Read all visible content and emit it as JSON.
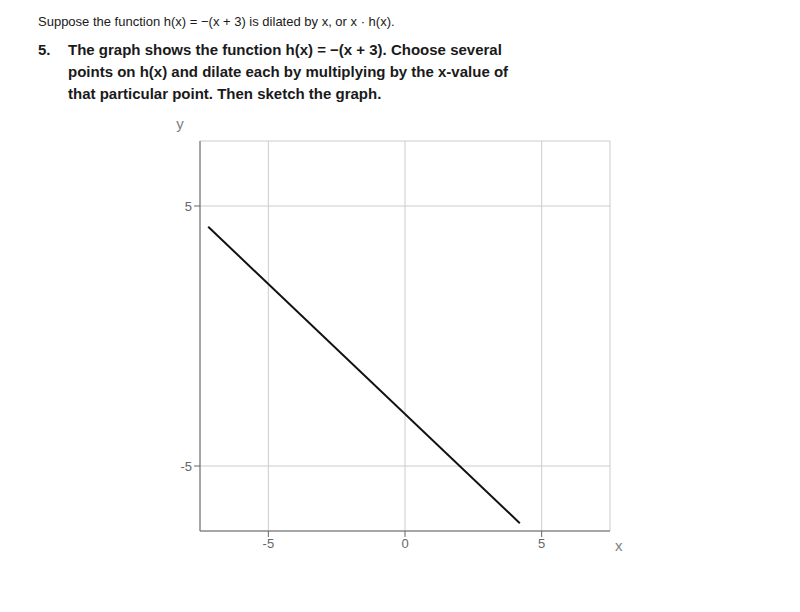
{
  "chart_data": {
    "type": "line",
    "title": "Suppose the function h(x) = −(x + 3) is dilated by x, or x · h(x).",
    "annotations": [
      "5.",
      "The graph shows the function h(x) = −(x + 3). Choose several",
      "points on h(x) and dilate each by multiplying by the x-value of",
      "that particular point. Then sketch the graph."
    ],
    "x_label": "x",
    "y_label": "y",
    "x": [
      -7.2,
      4.2
    ],
    "values": [
      4.2,
      -7.2
    ],
    "color": "#111111",
    "xlim": [
      -7.5,
      7.5
    ],
    "ylim": [
      -7.5,
      7.5
    ],
    "xticks": [
      -5,
      0,
      5
    ],
    "yticks": [
      5,
      -5
    ],
    "grid": true,
    "line_style": "solid"
  }
}
